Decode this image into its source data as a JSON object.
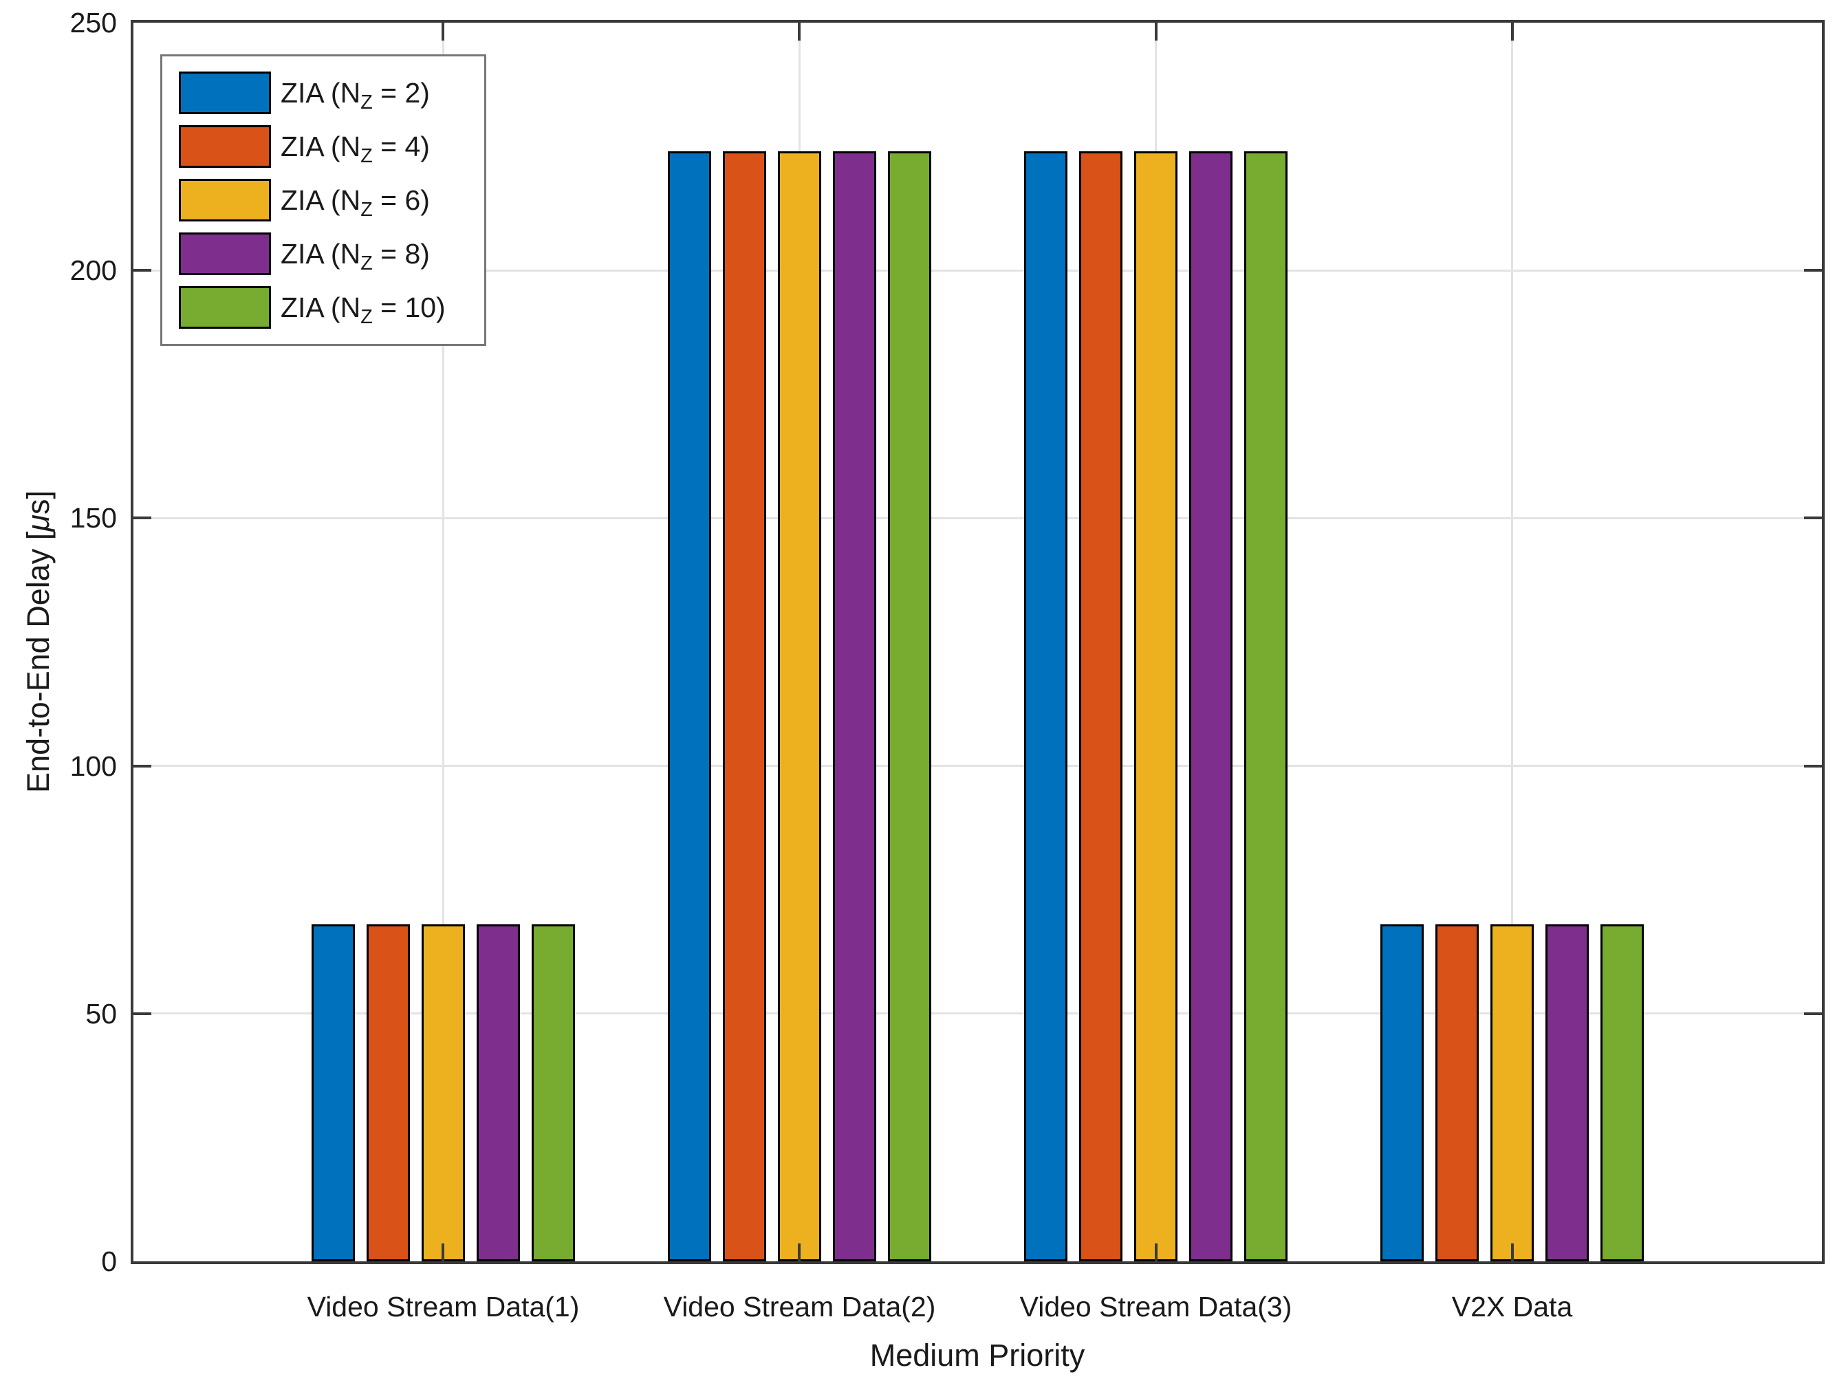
{
  "chart_data": {
    "type": "bar",
    "title": "",
    "xlabel": "Medium Priority",
    "ylabel": "End-to-End Delay [μs]",
    "ylabel_parts": {
      "pre": "End-to-End Delay [",
      "italic": "μ",
      "post": "s]"
    },
    "categories": [
      "Video Stream Data(1)",
      "Video Stream Data(2)",
      "Video Stream Data(3)",
      "V2X Data"
    ],
    "series": [
      {
        "name": "ZIA (N_Z = 2)",
        "legend": {
          "pre": "ZIA (N",
          "sub": "Z",
          "post": " = 2)"
        },
        "color": "#0072BD",
        "values": [
          68,
          224,
          224,
          68
        ]
      },
      {
        "name": "ZIA (N_Z = 4)",
        "legend": {
          "pre": "ZIA (N",
          "sub": "Z",
          "post": " = 4)"
        },
        "color": "#D95319",
        "values": [
          68,
          224,
          224,
          68
        ]
      },
      {
        "name": "ZIA (N_Z = 6)",
        "legend": {
          "pre": "ZIA (N",
          "sub": "Z",
          "post": " = 6)"
        },
        "color": "#EDB120",
        "values": [
          68,
          224,
          224,
          68
        ]
      },
      {
        "name": "ZIA (N_Z = 8)",
        "legend": {
          "pre": "ZIA (N",
          "sub": "Z",
          "post": " = 8)"
        },
        "color": "#7E2F8E",
        "values": [
          68,
          224,
          224,
          68
        ]
      },
      {
        "name": "ZIA (N_Z = 10)",
        "legend": {
          "pre": "ZIA (N",
          "sub": "Z",
          "post": " = 10)"
        },
        "color": "#77AC30",
        "values": [
          68,
          224,
          224,
          68
        ]
      }
    ],
    "ylim": [
      0,
      250
    ],
    "yticks": [
      0,
      50,
      100,
      150,
      200,
      250
    ],
    "grid": true,
    "legend_position": "top-left",
    "colors": {
      "axis": "#3a3a3a",
      "grid": "#e3e3e3",
      "bar_edge": "#000000",
      "text": "#1a1a1a",
      "legend_border": "#777777",
      "background": "#ffffff"
    }
  }
}
